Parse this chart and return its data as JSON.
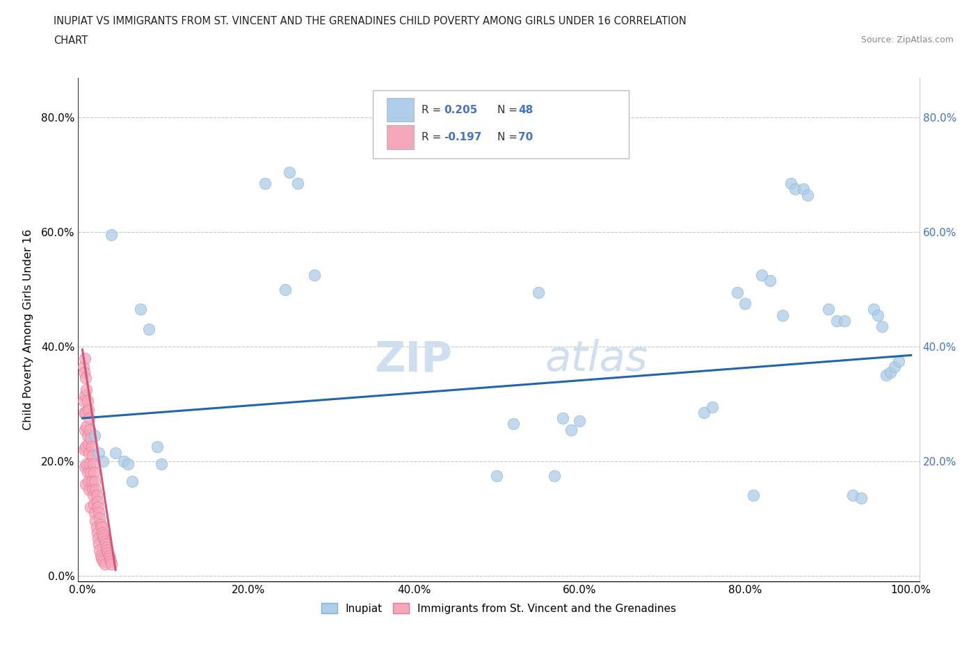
{
  "title_line1": "INUPIAT VS IMMIGRANTS FROM ST. VINCENT AND THE GRENADINES CHILD POVERTY AMONG GIRLS UNDER 16 CORRELATION",
  "title_line2": "CHART",
  "source_text": "Source: ZipAtlas.com",
  "ylabel": "Child Poverty Among Girls Under 16",
  "r1_val": "0.205",
  "n1_val": "48",
  "r2_val": "-0.197",
  "n2_val": "70",
  "inupiat_color": "#aecde8",
  "immigrant_color": "#f4a7b9",
  "inupiat_edge": "#7fb3d9",
  "immigrant_edge": "#e87499",
  "trend_color_1": "#2166ac",
  "trend_color_2": "#d6537a",
  "val_color": "#4472c4",
  "background_color": "#ffffff",
  "right_tick_color": "#4472c4",
  "xtick_vals": [
    0.0,
    0.2,
    0.4,
    0.6,
    0.8,
    1.0
  ],
  "xtick_labels": [
    "0.0%",
    "20.0%",
    "40.0%",
    "60.0%",
    "80.0%",
    "100.0%"
  ],
  "ytick_vals": [
    0.0,
    0.2,
    0.4,
    0.6,
    0.8
  ],
  "ytick_labels": [
    "0.0%",
    "20.0%",
    "40.0%",
    "60.0%",
    "80.0%"
  ],
  "right_ytick_vals": [
    0.2,
    0.4,
    0.6,
    0.8
  ],
  "right_ytick_labels": [
    "20.0%",
    "40.0%",
    "60.0%",
    "80.0%"
  ],
  "inupiat_x": [
    0.015,
    0.02,
    0.025,
    0.035,
    0.04,
    0.05,
    0.055,
    0.06,
    0.07,
    0.08,
    0.09,
    0.095,
    0.22,
    0.245,
    0.25,
    0.26,
    0.28,
    0.5,
    0.52,
    0.55,
    0.57,
    0.58,
    0.59,
    0.6,
    0.75,
    0.76,
    0.79,
    0.8,
    0.81,
    0.82,
    0.83,
    0.845,
    0.855,
    0.86,
    0.87,
    0.875,
    0.9,
    0.91,
    0.92,
    0.93,
    0.94,
    0.955,
    0.96,
    0.965,
    0.97,
    0.975,
    0.98,
    0.985
  ],
  "inupiat_y": [
    0.245,
    0.215,
    0.2,
    0.595,
    0.215,
    0.2,
    0.195,
    0.165,
    0.465,
    0.43,
    0.225,
    0.195,
    0.685,
    0.5,
    0.705,
    0.685,
    0.525,
    0.175,
    0.265,
    0.495,
    0.175,
    0.275,
    0.255,
    0.27,
    0.285,
    0.295,
    0.495,
    0.475,
    0.14,
    0.525,
    0.515,
    0.455,
    0.685,
    0.675,
    0.675,
    0.665,
    0.465,
    0.445,
    0.445,
    0.14,
    0.135,
    0.465,
    0.455,
    0.435,
    0.35,
    0.355,
    0.365,
    0.375
  ],
  "immigrant_x": [
    0.001,
    0.001,
    0.002,
    0.002,
    0.002,
    0.003,
    0.003,
    0.003,
    0.003,
    0.004,
    0.004,
    0.004,
    0.004,
    0.005,
    0.005,
    0.005,
    0.006,
    0.006,
    0.006,
    0.007,
    0.007,
    0.007,
    0.008,
    0.008,
    0.008,
    0.009,
    0.009,
    0.01,
    0.01,
    0.01,
    0.011,
    0.011,
    0.012,
    0.012,
    0.013,
    0.013,
    0.014,
    0.014,
    0.015,
    0.015,
    0.016,
    0.016,
    0.017,
    0.017,
    0.018,
    0.018,
    0.019,
    0.019,
    0.02,
    0.02,
    0.021,
    0.021,
    0.022,
    0.022,
    0.023,
    0.023,
    0.024,
    0.025,
    0.025,
    0.026,
    0.027,
    0.027,
    0.028,
    0.029,
    0.03,
    0.031,
    0.032,
    0.033,
    0.034,
    0.035
  ],
  "immigrant_y": [
    0.365,
    0.305,
    0.355,
    0.285,
    0.22,
    0.38,
    0.315,
    0.255,
    0.19,
    0.345,
    0.285,
    0.225,
    0.16,
    0.325,
    0.26,
    0.195,
    0.305,
    0.245,
    0.18,
    0.29,
    0.23,
    0.165,
    0.275,
    0.215,
    0.15,
    0.255,
    0.195,
    0.24,
    0.18,
    0.12,
    0.225,
    0.165,
    0.21,
    0.15,
    0.195,
    0.14,
    0.18,
    0.125,
    0.165,
    0.11,
    0.15,
    0.095,
    0.14,
    0.085,
    0.13,
    0.075,
    0.12,
    0.065,
    0.11,
    0.055,
    0.1,
    0.045,
    0.09,
    0.035,
    0.085,
    0.03,
    0.075,
    0.07,
    0.025,
    0.065,
    0.06,
    0.02,
    0.055,
    0.05,
    0.045,
    0.04,
    0.035,
    0.03,
    0.025,
    0.02
  ],
  "trend1_x": [
    0.0,
    1.0
  ],
  "trend1_y": [
    0.275,
    0.385
  ],
  "trend2_x": [
    0.0,
    0.04
  ],
  "trend2_y": [
    0.395,
    0.01
  ],
  "watermark": "ZIPatlas",
  "watermark_zip": "ZIP",
  "watermark_atlas": "atlas"
}
